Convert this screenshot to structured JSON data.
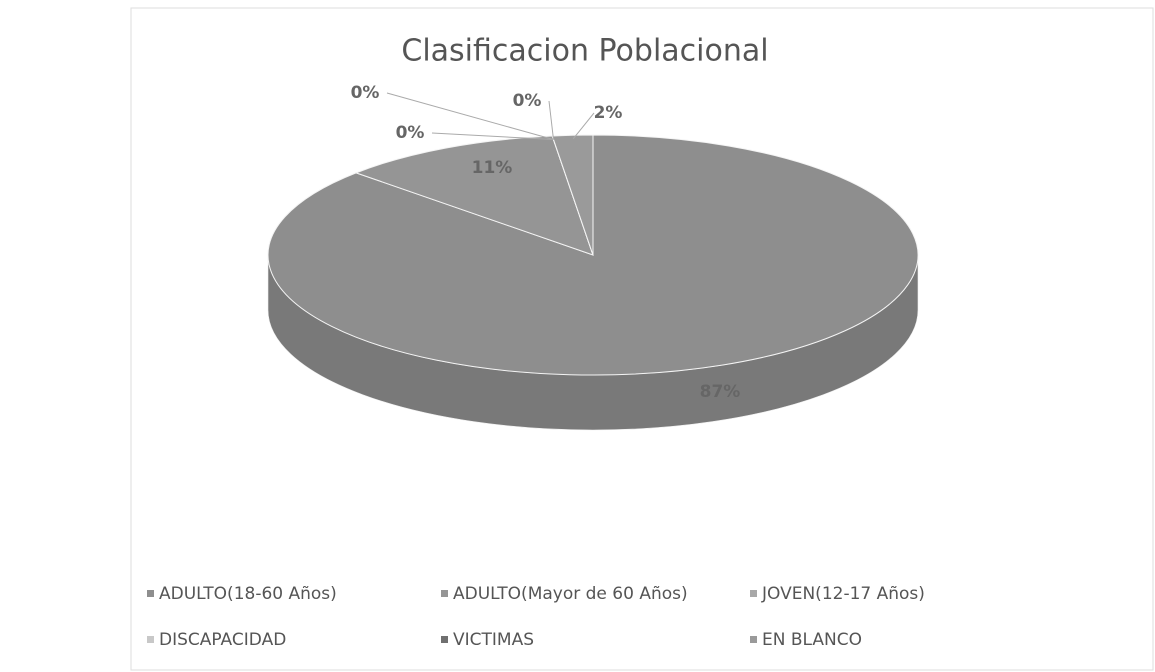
{
  "chart_data": {
    "type": "pie3d",
    "title": "Clasificacion Poblacional",
    "categories": [
      "ADULTO(18-60 Años)",
      "ADULTO(Mayor de 60 Años)",
      "JOVEN(12-17 Años)",
      "DISCAPACIDAD",
      "VICTIMAS",
      "EN BLANCO"
    ],
    "values": [
      87,
      11,
      0,
      0,
      0,
      2
    ],
    "value_labels": [
      "87%",
      "11%",
      "0%",
      "0%",
      "0%",
      "2%"
    ],
    "colors": [
      "#8e8e8e",
      "#959595",
      "#a8a8a8",
      "#c8c8c8",
      "#707070",
      "#9a9a9a"
    ],
    "legend": "bottom"
  }
}
